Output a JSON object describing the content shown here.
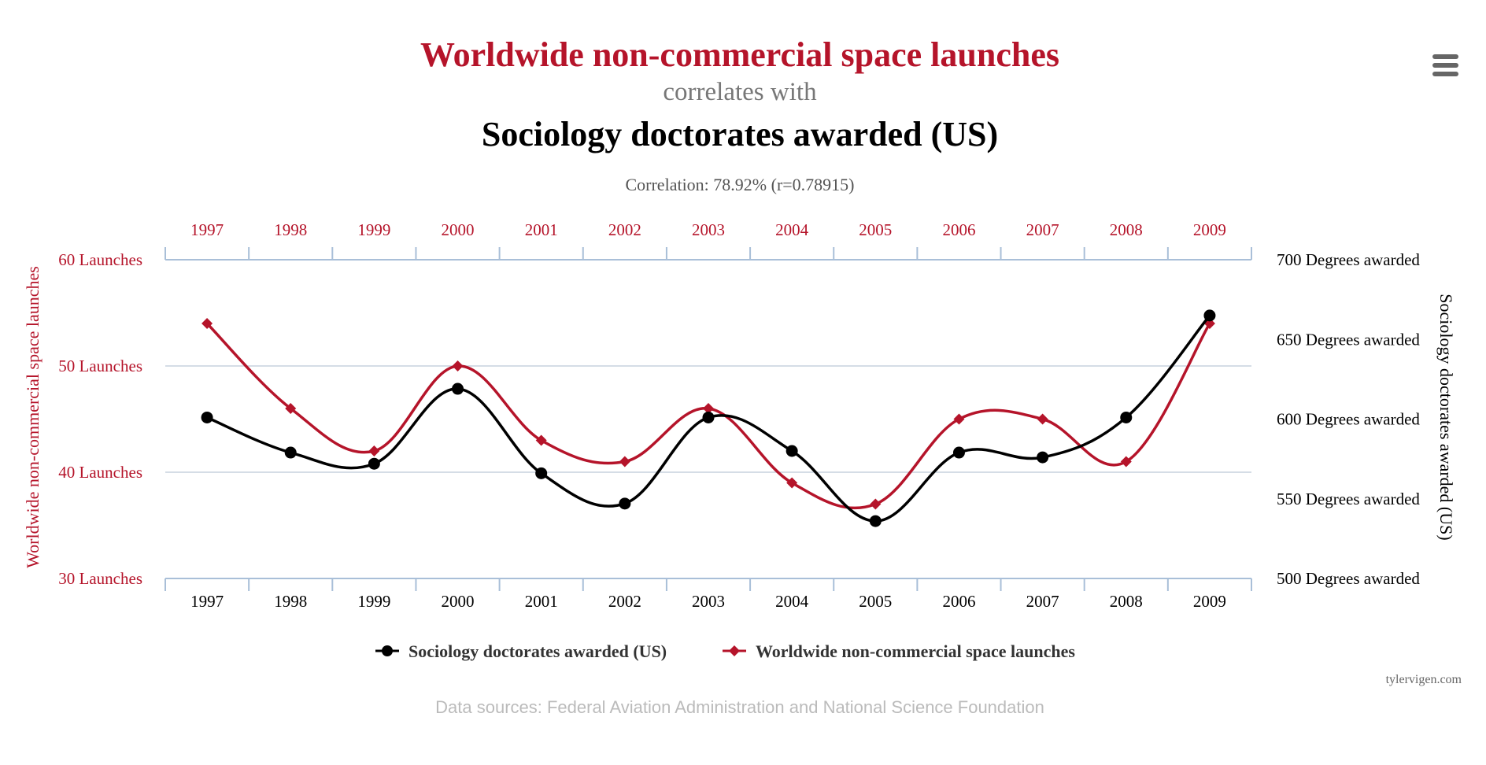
{
  "colors": {
    "red": "#b5142a",
    "black": "#000000",
    "grey_text": "#777777",
    "corr_text": "#555555",
    "axis_line": "#a9bfd8",
    "grid": "#c7d2de",
    "source_text": "#bbbbbb",
    "menu_icon": "#666666"
  },
  "menu": {
    "icon": "hamburger-menu-icon"
  },
  "chart_data": {
    "type": "line",
    "title_primary": "Worldwide non-commercial space launches",
    "title_connector": "correlates with",
    "title_secondary": "Sociology doctorates awarded (US)",
    "correlation": "Correlation: 78.92% (r=0.78915)",
    "categories": [
      "1997",
      "1998",
      "1999",
      "2000",
      "2001",
      "2002",
      "2003",
      "2004",
      "2005",
      "2006",
      "2007",
      "2008",
      "2009"
    ],
    "series": [
      {
        "name": "Sociology doctorates awarded (US)",
        "axis": "right",
        "color": "#000000",
        "marker": "circle",
        "values": [
          601,
          579,
          572,
          619,
          566,
          547,
          601,
          580,
          536,
          579,
          576,
          601,
          665
        ]
      },
      {
        "name": "Worldwide non-commercial space launches",
        "axis": "left",
        "color": "#b5142a",
        "marker": "diamond",
        "values": [
          54,
          46,
          42,
          50,
          43,
          41,
          46,
          39,
          37,
          45,
          45,
          41,
          54
        ]
      }
    ],
    "left_axis": {
      "title": "Worldwide non-commercial space launches",
      "ylim": [
        30,
        60
      ],
      "ticks": [
        30,
        40,
        50,
        60
      ],
      "tick_labels": [
        "30 Launches",
        "40 Launches",
        "50 Launches",
        "60 Launches"
      ]
    },
    "right_axis": {
      "title": "Sociology doctorates awarded (US)",
      "ylim": [
        500,
        700
      ],
      "ticks": [
        500,
        550,
        600,
        650,
        700
      ],
      "tick_labels": [
        "500 Degrees awarded",
        "550 Degrees awarded",
        "600 Degrees awarded",
        "650 Degrees awarded",
        "700 Degrees awarded"
      ]
    },
    "legend": {
      "position": "bottom-center",
      "items": [
        "Sociology doctorates awarded (US)",
        "Worldwide non-commercial space launches"
      ]
    },
    "credit": "tylervigen.com",
    "source": "Data sources: Federal Aviation Administration and National Science Foundation"
  }
}
